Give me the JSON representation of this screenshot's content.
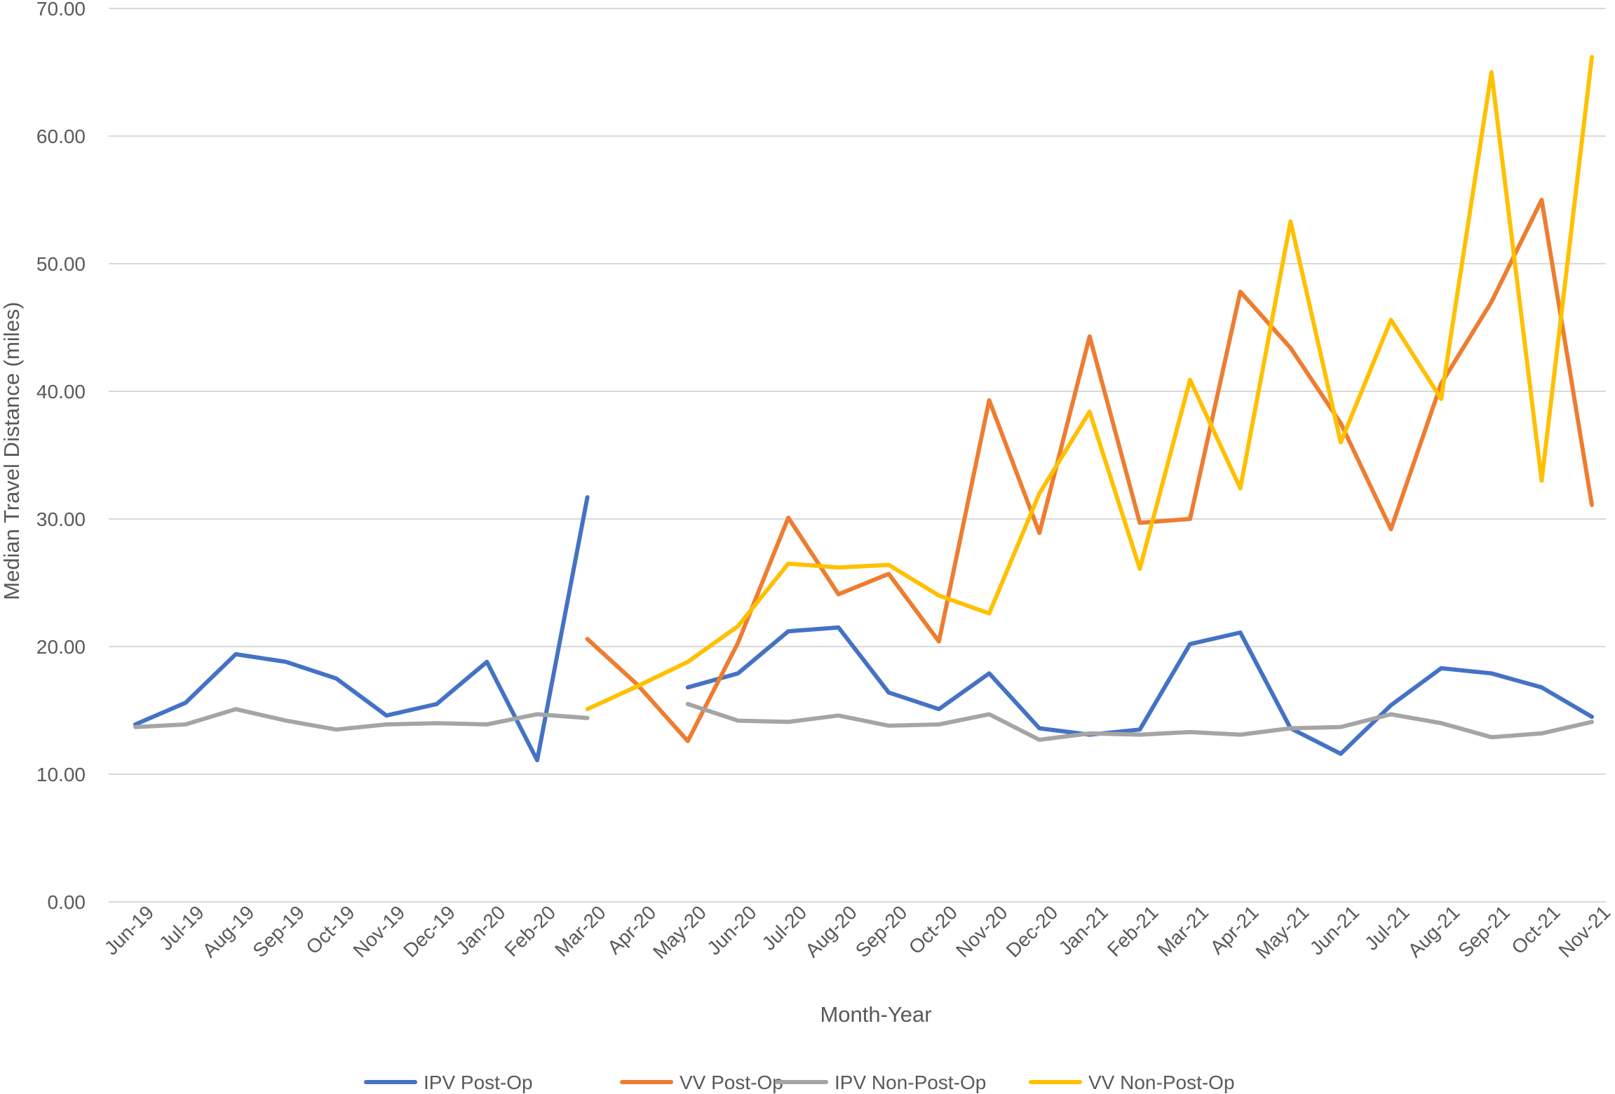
{
  "chart_data": {
    "type": "line",
    "title": "",
    "xlabel": "Month-Year",
    "ylabel": "Median Travel Distance (miles)",
    "ylim": [
      0,
      70
    ],
    "yticks": [
      "0.00",
      "10.00",
      "20.00",
      "30.00",
      "40.00",
      "50.00",
      "60.00",
      "70.00"
    ],
    "grid": "horizontal",
    "legend_position": "bottom",
    "categories": [
      "Jun-19",
      "Jul-19",
      "Aug-19",
      "Sep-19",
      "Oct-19",
      "Nov-19",
      "Dec-19",
      "Jan-20",
      "Feb-20",
      "Mar-20",
      "Apr-20",
      "May-20",
      "Jun-20",
      "Jul-20",
      "Aug-20",
      "Sep-20",
      "Oct-20",
      "Nov-20",
      "Dec-20",
      "Jan-21",
      "Feb-21",
      "Mar-21",
      "Apr-21",
      "May-21",
      "Jun-21",
      "Jul-21",
      "Aug-21",
      "Sep-21",
      "Oct-21",
      "Nov-21"
    ],
    "series": [
      {
        "name": "IPV Post-Op",
        "color": "#4472C4",
        "values": [
          13.9,
          15.6,
          19.4,
          18.8,
          17.5,
          14.6,
          15.5,
          18.8,
          11.1,
          31.7,
          null,
          16.8,
          17.9,
          21.2,
          21.5,
          16.4,
          15.1,
          17.9,
          13.6,
          13.1,
          13.5,
          20.2,
          21.1,
          13.6,
          11.6,
          15.4,
          18.3,
          17.9,
          16.8,
          14.5
        ]
      },
      {
        "name": "VV Post-Op",
        "color": "#ED7D31",
        "values": [
          null,
          null,
          null,
          null,
          null,
          null,
          null,
          null,
          null,
          20.6,
          17.0,
          12.6,
          20.3,
          30.1,
          24.1,
          25.7,
          20.4,
          39.3,
          28.9,
          44.3,
          29.7,
          30.0,
          47.8,
          43.4,
          37.5,
          29.2,
          40.6,
          47.0,
          55.0,
          31.1
        ]
      },
      {
        "name": "IPV Non-Post-Op",
        "color": "#A5A5A5",
        "values": [
          13.7,
          13.9,
          15.1,
          14.2,
          13.5,
          13.9,
          14.0,
          13.9,
          14.7,
          14.4,
          null,
          15.5,
          14.2,
          14.1,
          14.6,
          13.8,
          13.9,
          14.7,
          12.7,
          13.2,
          13.1,
          13.3,
          13.1,
          13.6,
          13.7,
          14.7,
          14.0,
          12.9,
          13.2,
          14.1
        ]
      },
      {
        "name": "VV Non-Post-Op",
        "color": "#FFC000",
        "values": [
          null,
          null,
          null,
          null,
          null,
          null,
          null,
          null,
          null,
          15.1,
          16.9,
          18.8,
          21.6,
          26.5,
          26.2,
          26.4,
          24.0,
          22.6,
          32.0,
          38.4,
          26.1,
          40.9,
          32.4,
          53.3,
          36.0,
          45.6,
          39.4,
          65.0,
          33.0,
          66.2
        ]
      }
    ]
  }
}
